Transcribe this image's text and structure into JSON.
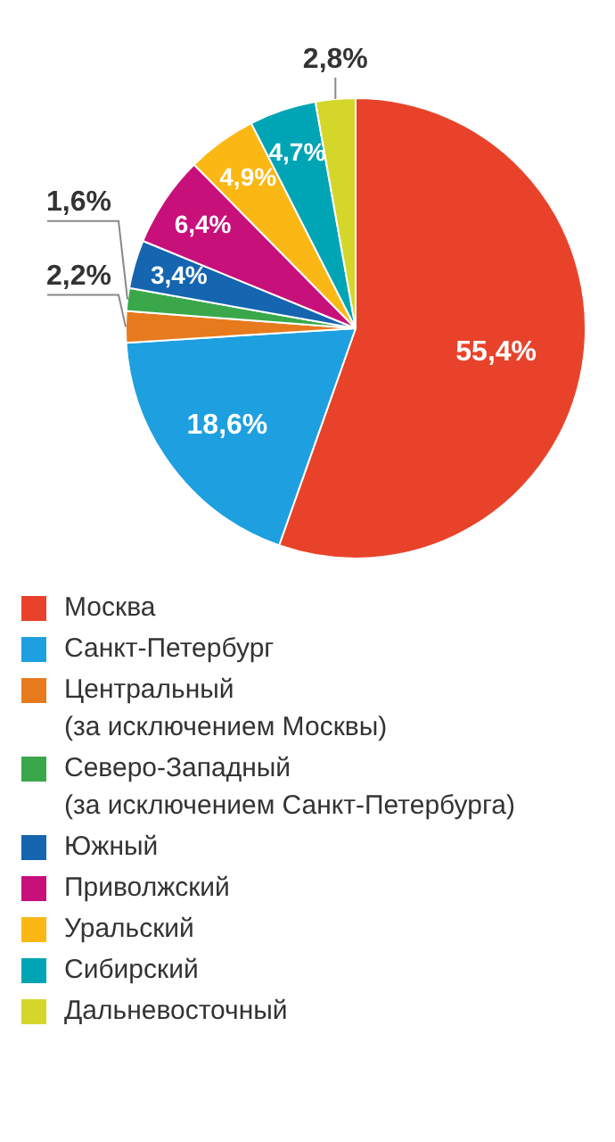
{
  "chart_data": {
    "type": "pie",
    "categories": [
      "Москва",
      "Санкт-Петербург",
      "Центральный\n(за исключением Москвы)",
      "Северо-Западный\n(за исключением Санкт-Петербурга)",
      "Южный",
      "Приволжский",
      "Уральский",
      "Сибирский",
      "Дальневосточный"
    ],
    "values": [
      55.4,
      18.6,
      2.2,
      1.6,
      3.4,
      6.4,
      4.9,
      4.7,
      2.8
    ],
    "value_labels": [
      "55,4%",
      "18,6%",
      "2,2%",
      "1,6%",
      "3,4%",
      "6,4%",
      "4,9%",
      "4,7%",
      "2,8%"
    ],
    "colors": [
      "#e8432a",
      "#1e9fe0",
      "#e87a1e",
      "#3aa84a",
      "#1565b0",
      "#c8107a",
      "#fbb814",
      "#00a5b5",
      "#d4d62a"
    ],
    "legend": "bottom"
  }
}
